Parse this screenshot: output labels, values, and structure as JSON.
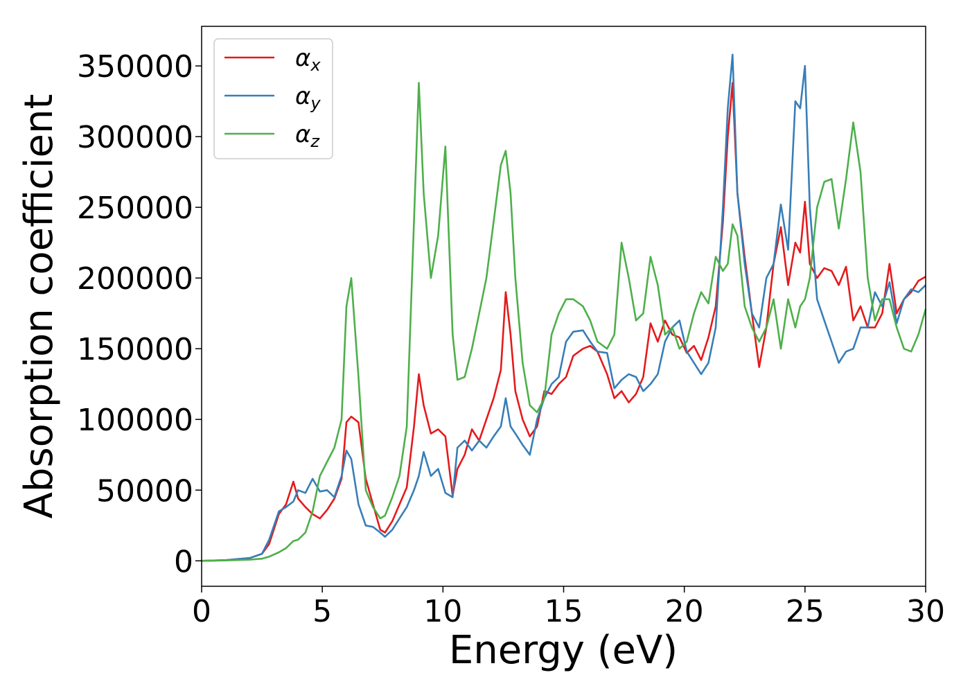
{
  "chart_data": {
    "type": "line",
    "title": "",
    "xlabel": "Energy (eV)",
    "ylabel": "Absorption coefficient",
    "xlim": [
      0,
      30
    ],
    "ylim": [
      -18000,
      378000
    ],
    "xticks": [
      0,
      5,
      10,
      15,
      20,
      25,
      30
    ],
    "yticks": [
      0,
      50000,
      100000,
      150000,
      200000,
      250000,
      300000,
      350000
    ],
    "grid": false,
    "legend_position": "top-left",
    "series": [
      {
        "name": "α_x",
        "symbol": "α",
        "sub": "x",
        "color": "#e41a1c",
        "x": [
          0,
          1,
          2,
          2.5,
          2.8,
          3.2,
          3.5,
          3.8,
          4.0,
          4.3,
          4.6,
          4.9,
          5.2,
          5.5,
          5.8,
          6.0,
          6.2,
          6.5,
          6.8,
          7.1,
          7.4,
          7.6,
          7.9,
          8.2,
          8.5,
          8.8,
          9.0,
          9.2,
          9.5,
          9.8,
          10.1,
          10.4,
          10.6,
          10.9,
          11.2,
          11.5,
          11.8,
          12.1,
          12.4,
          12.6,
          12.8,
          13.0,
          13.3,
          13.6,
          13.9,
          14.2,
          14.5,
          14.8,
          15.1,
          15.4,
          15.8,
          16.1,
          16.4,
          16.8,
          17.1,
          17.4,
          17.7,
          18.0,
          18.3,
          18.6,
          18.9,
          19.2,
          19.5,
          19.8,
          20.1,
          20.4,
          20.7,
          21.0,
          21.3,
          21.6,
          21.8,
          22.0,
          22.2,
          22.5,
          22.8,
          23.1,
          23.4,
          23.7,
          24.0,
          24.3,
          24.6,
          24.8,
          25.0,
          25.2,
          25.5,
          25.8,
          26.1,
          26.4,
          26.7,
          27.0,
          27.3,
          27.6,
          27.9,
          28.2,
          28.5,
          28.8,
          29.1,
          29.4,
          29.7,
          30.0
        ],
        "y": [
          0,
          500,
          2000,
          5000,
          12000,
          33000,
          40000,
          56000,
          44000,
          38000,
          33000,
          30000,
          36000,
          44000,
          58000,
          98000,
          102000,
          98000,
          58000,
          40000,
          22000,
          20000,
          28000,
          40000,
          52000,
          95000,
          132000,
          110000,
          90000,
          93000,
          88000,
          46000,
          65000,
          75000,
          93000,
          85000,
          100000,
          115000,
          135000,
          190000,
          160000,
          120000,
          100000,
          88000,
          95000,
          120000,
          118000,
          125000,
          130000,
          145000,
          150000,
          152000,
          148000,
          132000,
          115000,
          120000,
          112000,
          118000,
          130000,
          168000,
          155000,
          170000,
          160000,
          158000,
          147000,
          152000,
          142000,
          158000,
          180000,
          240000,
          300000,
          338000,
          260000,
          215000,
          175000,
          137000,
          165000,
          210000,
          236000,
          195000,
          225000,
          218000,
          254000,
          210000,
          200000,
          207000,
          205000,
          195000,
          208000,
          170000,
          180000,
          165000,
          165000,
          175000,
          210000,
          175000,
          185000,
          190000,
          198000,
          201000
        ]
      },
      {
        "name": "α_y",
        "symbol": "α",
        "sub": "y",
        "color": "#377eb8",
        "x": [
          0,
          1,
          2,
          2.5,
          2.8,
          3.2,
          3.5,
          3.8,
          4.0,
          4.3,
          4.6,
          4.9,
          5.2,
          5.5,
          5.8,
          6.0,
          6.2,
          6.5,
          6.8,
          7.1,
          7.4,
          7.6,
          7.9,
          8.2,
          8.5,
          8.8,
          9.0,
          9.2,
          9.5,
          9.8,
          10.1,
          10.4,
          10.6,
          10.9,
          11.2,
          11.5,
          11.8,
          12.1,
          12.4,
          12.6,
          12.8,
          13.0,
          13.3,
          13.6,
          13.9,
          14.2,
          14.5,
          14.8,
          15.1,
          15.4,
          15.8,
          16.1,
          16.4,
          16.8,
          17.1,
          17.4,
          17.7,
          18.0,
          18.3,
          18.6,
          18.9,
          19.2,
          19.5,
          19.8,
          20.1,
          20.4,
          20.7,
          21.0,
          21.3,
          21.6,
          21.8,
          22.0,
          22.2,
          22.5,
          22.8,
          23.1,
          23.4,
          23.7,
          24.0,
          24.3,
          24.6,
          24.8,
          25.0,
          25.2,
          25.5,
          25.8,
          26.1,
          26.4,
          26.7,
          27.0,
          27.3,
          27.6,
          27.9,
          28.2,
          28.5,
          28.8,
          29.1,
          29.4,
          29.7,
          30.0
        ],
        "y": [
          0,
          500,
          2000,
          5000,
          15000,
          35000,
          38000,
          42000,
          50000,
          48000,
          58000,
          49000,
          50000,
          45000,
          60000,
          78000,
          72000,
          40000,
          25000,
          24000,
          20000,
          17000,
          22000,
          30000,
          38000,
          50000,
          60000,
          77000,
          60000,
          65000,
          48000,
          45000,
          80000,
          85000,
          78000,
          85000,
          80000,
          88000,
          95000,
          115000,
          95000,
          90000,
          82000,
          75000,
          100000,
          115000,
          125000,
          130000,
          155000,
          162000,
          163000,
          155000,
          148000,
          147000,
          122000,
          128000,
          132000,
          130000,
          120000,
          125000,
          132000,
          155000,
          165000,
          170000,
          148000,
          140000,
          132000,
          140000,
          165000,
          250000,
          320000,
          358000,
          260000,
          210000,
          175000,
          165000,
          200000,
          210000,
          252000,
          220000,
          325000,
          320000,
          350000,
          250000,
          185000,
          170000,
          155000,
          140000,
          148000,
          150000,
          165000,
          165000,
          190000,
          180000,
          197000,
          168000,
          185000,
          192000,
          190000,
          195000
        ]
      },
      {
        "name": "α_z",
        "symbol": "α",
        "sub": "z",
        "color": "#4daf4a",
        "x": [
          0,
          1,
          2,
          2.5,
          2.8,
          3.2,
          3.5,
          3.8,
          4.0,
          4.3,
          4.6,
          4.9,
          5.2,
          5.5,
          5.8,
          6.0,
          6.2,
          6.5,
          6.8,
          7.1,
          7.4,
          7.6,
          7.9,
          8.2,
          8.5,
          8.8,
          9.0,
          9.2,
          9.5,
          9.8,
          10.1,
          10.4,
          10.6,
          10.9,
          11.2,
          11.5,
          11.8,
          12.1,
          12.4,
          12.6,
          12.8,
          13.0,
          13.3,
          13.6,
          13.9,
          14.2,
          14.5,
          14.8,
          15.1,
          15.4,
          15.8,
          16.1,
          16.4,
          16.8,
          17.1,
          17.4,
          17.7,
          18.0,
          18.3,
          18.6,
          18.9,
          19.2,
          19.5,
          19.8,
          20.1,
          20.4,
          20.7,
          21.0,
          21.3,
          21.6,
          21.8,
          22.0,
          22.2,
          22.5,
          22.8,
          23.1,
          23.4,
          23.7,
          24.0,
          24.3,
          24.6,
          24.8,
          25.0,
          25.2,
          25.5,
          25.8,
          26.1,
          26.4,
          26.7,
          27.0,
          27.3,
          27.6,
          27.9,
          28.2,
          28.5,
          28.8,
          29.1,
          29.4,
          29.7,
          30.0
        ],
        "y": [
          0,
          300,
          800,
          1500,
          3000,
          6000,
          9000,
          14000,
          15000,
          20000,
          35000,
          60000,
          70000,
          80000,
          100000,
          180000,
          200000,
          130000,
          50000,
          38000,
          30000,
          32000,
          45000,
          60000,
          95000,
          240000,
          338000,
          260000,
          200000,
          230000,
          293000,
          160000,
          128000,
          130000,
          150000,
          175000,
          200000,
          240000,
          280000,
          290000,
          260000,
          200000,
          140000,
          110000,
          105000,
          115000,
          160000,
          175000,
          185000,
          185000,
          180000,
          170000,
          155000,
          150000,
          160000,
          225000,
          200000,
          170000,
          175000,
          215000,
          195000,
          160000,
          165000,
          150000,
          155000,
          175000,
          190000,
          182000,
          215000,
          205000,
          210000,
          238000,
          230000,
          180000,
          165000,
          155000,
          165000,
          185000,
          150000,
          185000,
          165000,
          180000,
          185000,
          200000,
          250000,
          268000,
          270000,
          235000,
          270000,
          310000,
          275000,
          200000,
          170000,
          185000,
          185000,
          165000,
          150000,
          148000,
          160000,
          178000
        ]
      }
    ]
  }
}
